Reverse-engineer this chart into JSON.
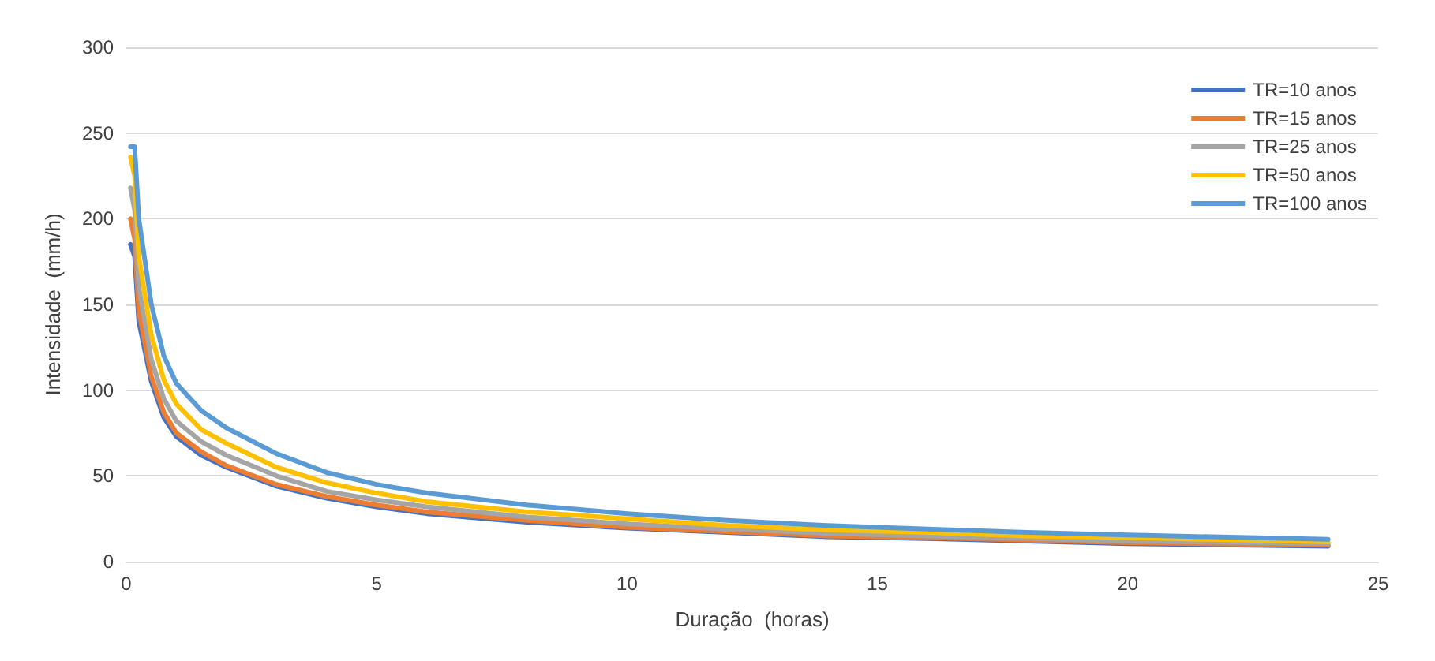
{
  "chart_data": {
    "type": "line",
    "xlabel": "Duração  (horas)",
    "ylabel": "Intensidade  (mm/h)",
    "x": [
      0.083,
      0.167,
      0.25,
      0.5,
      0.75,
      1,
      1.5,
      2,
      3,
      4,
      5,
      6,
      8,
      10,
      12,
      14,
      16,
      18,
      20,
      24
    ],
    "series": [
      {
        "name": "TR=10 anos",
        "color": "#4472c4",
        "values": [
          185,
          178,
          140,
          105,
          84,
          73,
          62,
          55,
          44,
          37,
          32,
          28,
          23,
          19.5,
          17,
          14.5,
          13.5,
          12,
          10.5,
          9
        ]
      },
      {
        "name": "TR=15 anos",
        "color": "#ed7d31",
        "values": [
          200,
          188,
          146,
          108,
          87,
          75,
          64,
          56,
          45,
          38,
          33,
          29,
          24,
          20,
          17.5,
          15,
          14,
          12.5,
          11,
          9.5
        ]
      },
      {
        "name": "TR=25 anos",
        "color": "#a5a5a5",
        "values": [
          218,
          205,
          160,
          118,
          95,
          82,
          70,
          62,
          50,
          41,
          36,
          32,
          26,
          22,
          19,
          16.5,
          15,
          13.5,
          12,
          10.5
        ]
      },
      {
        "name": "TR=50 anos",
        "color": "#ffc000",
        "values": [
          236,
          225,
          178,
          132,
          106,
          92,
          77,
          69,
          55,
          46,
          40,
          35,
          29,
          25,
          21,
          18.5,
          17,
          15,
          14,
          11.5
        ]
      },
      {
        "name": "TR=100 anos",
        "color": "#5b9bd5",
        "values": [
          242,
          242,
          200,
          150,
          120,
          104,
          88,
          78,
          63,
          52,
          45,
          40,
          33,
          28,
          24,
          21,
          19,
          17,
          15.5,
          13
        ]
      }
    ],
    "xlim": [
      0,
      25
    ],
    "xticks": [
      0,
      5,
      10,
      15,
      20,
      25
    ],
    "ylim": [
      0,
      300
    ],
    "yticks": [
      0,
      50,
      100,
      150,
      200,
      250,
      300
    ],
    "grid": "y",
    "legend": "top right",
    "marker": "none",
    "line_style": "solid"
  }
}
